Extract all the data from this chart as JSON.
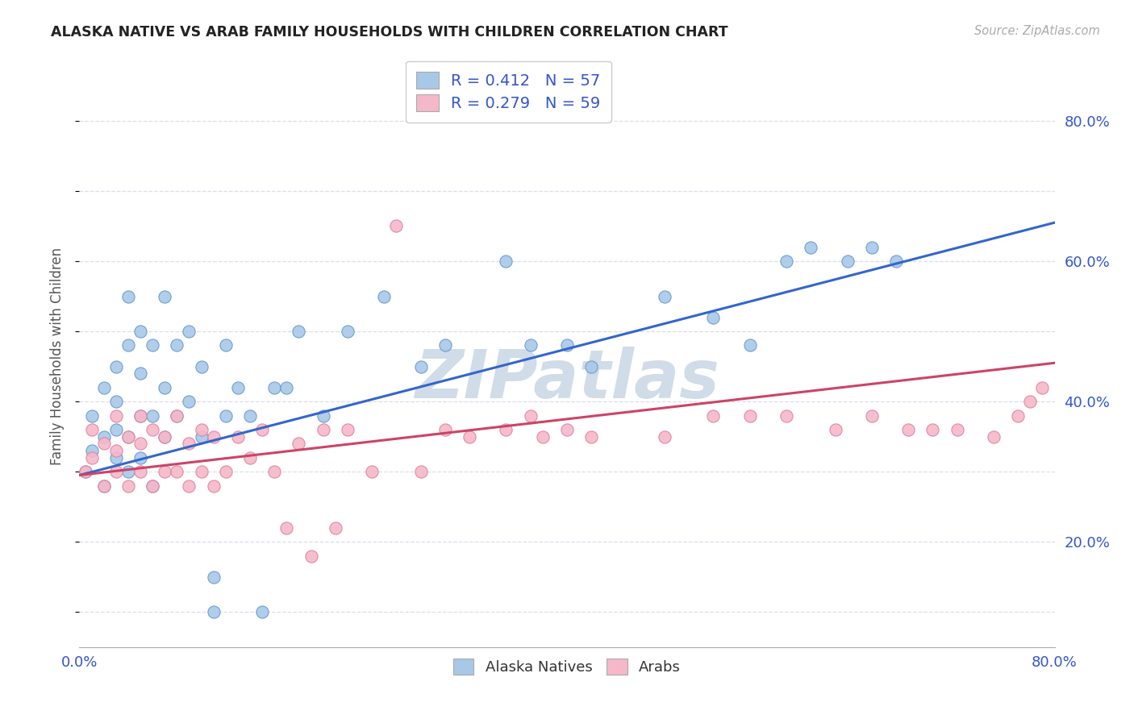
{
  "title": "ALASKA NATIVE VS ARAB FAMILY HOUSEHOLDS WITH CHILDREN CORRELATION CHART",
  "source": "Source: ZipAtlas.com",
  "ylabel": "Family Households with Children",
  "y_tick_labels": [
    "20.0%",
    "40.0%",
    "60.0%",
    "80.0%"
  ],
  "y_tick_values": [
    0.2,
    0.4,
    0.6,
    0.8
  ],
  "xlim": [
    0.0,
    0.8
  ],
  "ylim": [
    0.05,
    0.88
  ],
  "blue_R": 0.412,
  "blue_N": 57,
  "pink_R": 0.279,
  "pink_N": 59,
  "blue_color": "#a8c8e8",
  "blue_edge_color": "#6699cc",
  "pink_color": "#f5b8c8",
  "pink_edge_color": "#e080a0",
  "blue_line_color": "#3366cc",
  "pink_line_color": "#cc4466",
  "legend_text_color": "#3355cc",
  "axis_label_color": "#3355cc",
  "background_color": "#ffffff",
  "grid_color": "#ddddee",
  "watermark_color": "#d0dce8",
  "alaska_natives_x": [
    0.005,
    0.01,
    0.01,
    0.02,
    0.02,
    0.02,
    0.03,
    0.03,
    0.03,
    0.03,
    0.04,
    0.04,
    0.04,
    0.04,
    0.05,
    0.05,
    0.05,
    0.05,
    0.06,
    0.06,
    0.06,
    0.07,
    0.07,
    0.07,
    0.08,
    0.08,
    0.09,
    0.09,
    0.1,
    0.1,
    0.11,
    0.11,
    0.12,
    0.12,
    0.13,
    0.14,
    0.15,
    0.16,
    0.17,
    0.18,
    0.2,
    0.22,
    0.25,
    0.28,
    0.3,
    0.35,
    0.37,
    0.4,
    0.42,
    0.48,
    0.52,
    0.55,
    0.58,
    0.6,
    0.63,
    0.65,
    0.67
  ],
  "alaska_natives_y": [
    0.3,
    0.33,
    0.38,
    0.28,
    0.35,
    0.42,
    0.32,
    0.36,
    0.4,
    0.45,
    0.3,
    0.35,
    0.48,
    0.55,
    0.32,
    0.38,
    0.44,
    0.5,
    0.28,
    0.38,
    0.48,
    0.35,
    0.42,
    0.55,
    0.38,
    0.48,
    0.4,
    0.5,
    0.35,
    0.45,
    0.1,
    0.15,
    0.38,
    0.48,
    0.42,
    0.38,
    0.1,
    0.42,
    0.42,
    0.5,
    0.38,
    0.5,
    0.55,
    0.45,
    0.48,
    0.6,
    0.48,
    0.48,
    0.45,
    0.55,
    0.52,
    0.48,
    0.6,
    0.62,
    0.6,
    0.62,
    0.6
  ],
  "arabs_x": [
    0.005,
    0.01,
    0.01,
    0.02,
    0.02,
    0.03,
    0.03,
    0.03,
    0.04,
    0.04,
    0.05,
    0.05,
    0.05,
    0.06,
    0.06,
    0.07,
    0.07,
    0.08,
    0.08,
    0.09,
    0.09,
    0.1,
    0.1,
    0.11,
    0.11,
    0.12,
    0.13,
    0.14,
    0.15,
    0.16,
    0.17,
    0.18,
    0.19,
    0.2,
    0.21,
    0.22,
    0.24,
    0.26,
    0.28,
    0.3,
    0.32,
    0.35,
    0.37,
    0.38,
    0.4,
    0.42,
    0.48,
    0.52,
    0.55,
    0.58,
    0.62,
    0.65,
    0.68,
    0.7,
    0.72,
    0.75,
    0.77,
    0.78,
    0.79
  ],
  "arabs_y": [
    0.3,
    0.32,
    0.36,
    0.28,
    0.34,
    0.3,
    0.33,
    0.38,
    0.28,
    0.35,
    0.3,
    0.34,
    0.38,
    0.28,
    0.36,
    0.3,
    0.35,
    0.3,
    0.38,
    0.28,
    0.34,
    0.3,
    0.36,
    0.28,
    0.35,
    0.3,
    0.35,
    0.32,
    0.36,
    0.3,
    0.22,
    0.34,
    0.18,
    0.36,
    0.22,
    0.36,
    0.3,
    0.65,
    0.3,
    0.36,
    0.35,
    0.36,
    0.38,
    0.35,
    0.36,
    0.35,
    0.35,
    0.38,
    0.38,
    0.38,
    0.36,
    0.38,
    0.36,
    0.36,
    0.36,
    0.35,
    0.38,
    0.4,
    0.42
  ]
}
